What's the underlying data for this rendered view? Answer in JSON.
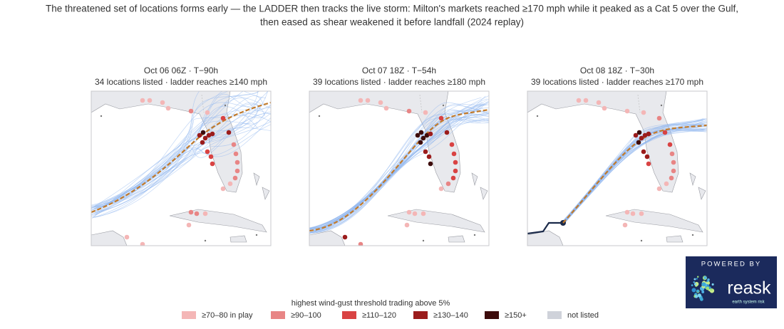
{
  "title_lines": [
    "The threatened set of locations forms early — the LADDER then tracks the live storm: Milton's markets reached ≥170 mph while it peaked as a Cat 5 over the Gulf,",
    "then eased as shear weakened it before landfall  (2024 replay)"
  ],
  "panels": [
    {
      "title": "Oct 06 06Z  ·  T−90h",
      "subtitle": "34 locations listed · ladder reaches ≥140 mph"
    },
    {
      "title": "Oct 07 18Z  ·  T−54h",
      "subtitle": "39 locations listed · ladder reaches ≥180 mph"
    },
    {
      "title": "Oct 08 18Z  ·  T−30h",
      "subtitle": "39 locations listed · ladder reaches ≥170 mph"
    }
  ],
  "legend": {
    "title": "highest wind-gust threshold trading above 5%",
    "items": [
      {
        "label": "≥70–80 in play",
        "color": "#f4b6b6"
      },
      {
        "label": "≥90–100",
        "color": "#e88585"
      },
      {
        "label": "≥110–120",
        "color": "#d94343"
      },
      {
        "label": "≥130–140",
        "color": "#9b1c1c"
      },
      {
        "label": "≥150+",
        "color": "#3d0c0c"
      },
      {
        "label": "not listed",
        "color": "#cfd2da"
      }
    ]
  },
  "logo": {
    "top": "POWERED BY",
    "name": "reask",
    "tagline": "earth system risk"
  }
}
